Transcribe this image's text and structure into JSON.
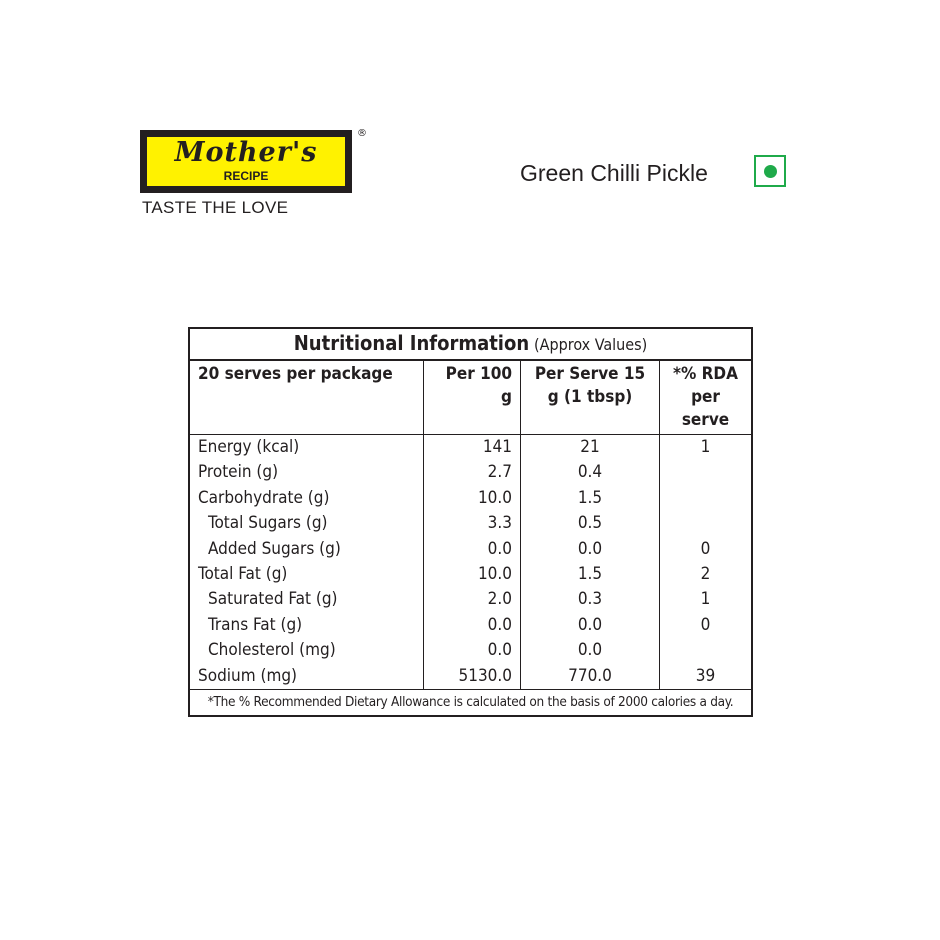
{
  "brand": {
    "name": "Mother's",
    "sub": "RECIPE",
    "tagline": "TASTE THE LOVE",
    "reg": "®"
  },
  "product": {
    "name": "Green Chilli Pickle",
    "veg_mark_color": "#1faa4a"
  },
  "table": {
    "title": "Nutritional Information",
    "title_note": "(Approx Values)",
    "headers": [
      "20 serves per package",
      "Per 100 g",
      "Per Serve 15 g  (1 tbsp)",
      "*% RDA per serve"
    ],
    "rows": [
      {
        "name": "Energy (kcal)",
        "per100": "141",
        "serve": "21",
        "rda": "1",
        "indent": false
      },
      {
        "name": "Protein (g)",
        "per100": "2.7",
        "serve": "0.4",
        "rda": "",
        "indent": false
      },
      {
        "name": "Carbohydrate (g)",
        "per100": "10.0",
        "serve": "1.5",
        "rda": "",
        "indent": false
      },
      {
        "name": "Total Sugars (g)",
        "per100": "3.3",
        "serve": "0.5",
        "rda": "",
        "indent": true
      },
      {
        "name": "Added Sugars (g)",
        "per100": "0.0",
        "serve": "0.0",
        "rda": "0",
        "indent": true
      },
      {
        "name": "Total Fat (g)",
        "per100": "10.0",
        "serve": "1.5",
        "rda": "2",
        "indent": false
      },
      {
        "name": "Saturated Fat (g)",
        "per100": "2.0",
        "serve": "0.3",
        "rda": "1",
        "indent": true
      },
      {
        "name": "Trans Fat (g)",
        "per100": "0.0",
        "serve": "0.0",
        "rda": "0",
        "indent": true
      },
      {
        "name": "Cholesterol (mg)",
        "per100": "0.0",
        "serve": "0.0",
        "rda": "",
        "indent": true
      },
      {
        "name": "Sodium (mg)",
        "per100": "5130.0",
        "serve": "770.0",
        "rda": "39",
        "indent": false
      }
    ],
    "footnote": "*The % Recommended Dietary Allowance is calculated on the basis of 2000 calories a day."
  }
}
